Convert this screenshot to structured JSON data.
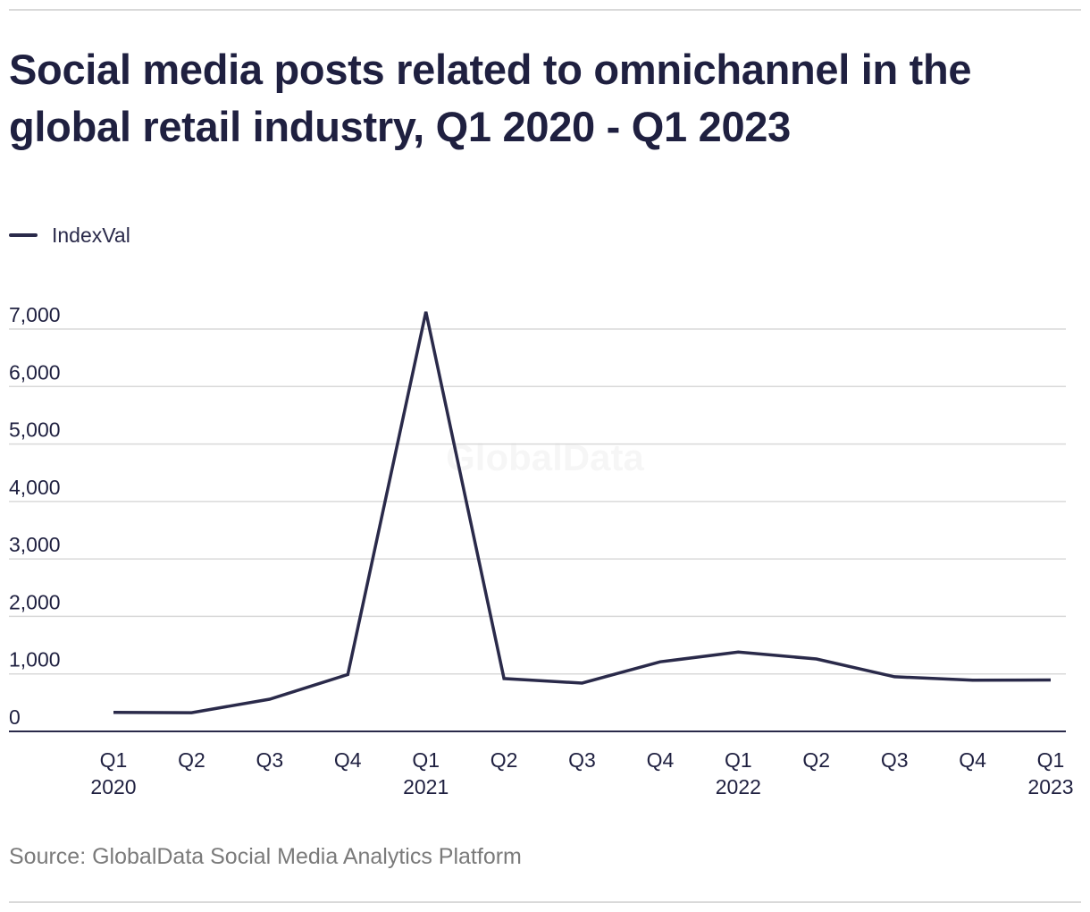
{
  "page": {
    "title": "Social media posts related to omnichannel in the global retail industry, Q1 2020 - Q1 2023",
    "source": "Source: GlobalData Social Media Analytics Platform",
    "watermark": "GlobalData"
  },
  "chart_data": {
    "type": "line",
    "title": "Social media posts related to omnichannel in the global retail industry, Q1 2020 - Q1 2023",
    "xlabel": "",
    "ylabel": "",
    "categories": [
      "Q1 2020",
      "Q2 2020",
      "Q3 2020",
      "Q4 2020",
      "Q1 2021",
      "Q2 2021",
      "Q3 2021",
      "Q4 2021",
      "Q1 2022",
      "Q2 2022",
      "Q3 2022",
      "Q4 2022",
      "Q1 2023"
    ],
    "tick_labels": [
      {
        "quarter": "Q1",
        "year": "2020"
      },
      {
        "quarter": "Q2",
        "year": ""
      },
      {
        "quarter": "Q3",
        "year": ""
      },
      {
        "quarter": "Q4",
        "year": ""
      },
      {
        "quarter": "Q1",
        "year": "2021"
      },
      {
        "quarter": "Q2",
        "year": ""
      },
      {
        "quarter": "Q3",
        "year": ""
      },
      {
        "quarter": "Q4",
        "year": ""
      },
      {
        "quarter": "Q1",
        "year": "2022"
      },
      {
        "quarter": "Q2",
        "year": ""
      },
      {
        "quarter": "Q3",
        "year": ""
      },
      {
        "quarter": "Q4",
        "year": ""
      },
      {
        "quarter": "Q1",
        "year": "2023"
      }
    ],
    "series": [
      {
        "name": "IndexVal",
        "color": "#2a2a4a",
        "values": [
          330,
          325,
          560,
          990,
          7300,
          920,
          840,
          1210,
          1380,
          1260,
          950,
          890,
          895
        ]
      }
    ],
    "yticks": [
      0,
      1000,
      2000,
      3000,
      4000,
      5000,
      6000,
      7000
    ],
    "ytick_labels": [
      "0",
      "1,000",
      "2,000",
      "3,000",
      "4,000",
      "5,000",
      "6,000",
      "7,000"
    ],
    "ylim": [
      0,
      7000
    ],
    "grid": true,
    "legend_position": "top-left",
    "colors": {
      "line": "#2a2a4a",
      "grid": "#d9d9d9",
      "axis": "#2a2a4a",
      "text": "#1f2040"
    }
  }
}
